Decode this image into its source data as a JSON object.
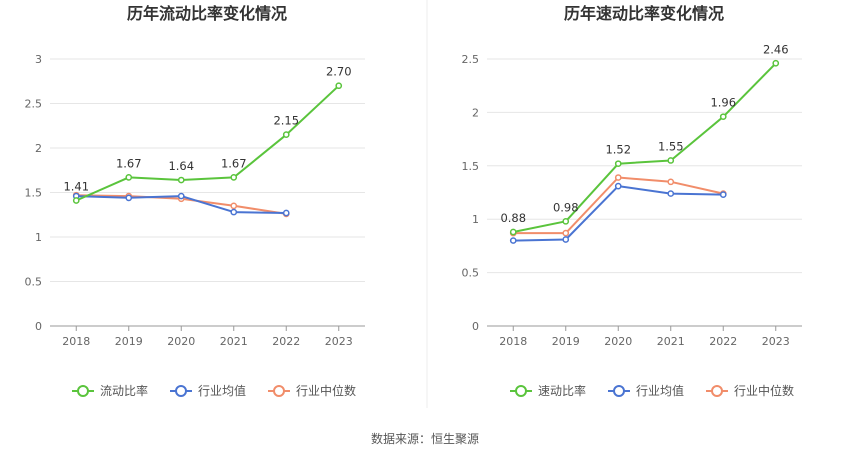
{
  "colors": {
    "green": "#5ac43c",
    "blue": "#4a74d2",
    "orange": "#f18d6a",
    "grid": "#e6e6e6",
    "axis": "#999999"
  },
  "source": "数据来源：恒生聚源",
  "chart_data": [
    {
      "type": "line",
      "title": "历年流动比率变化情况",
      "categories": [
        "2018",
        "2019",
        "2020",
        "2021",
        "2022",
        "2023"
      ],
      "ylim": [
        0,
        3
      ],
      "yticks": [
        "0",
        "0.5",
        "1",
        "1.5",
        "2",
        "2.5",
        "3"
      ],
      "grid": true,
      "legend_position": "bottom",
      "series": [
        {
          "name": "流动比率",
          "color": "#5ac43c",
          "values": [
            1.41,
            1.67,
            1.64,
            1.67,
            2.15,
            2.7
          ],
          "labels": [
            "1.41",
            "1.67",
            "1.64",
            "1.67",
            "2.15",
            "2.70"
          ]
        },
        {
          "name": "行业均值",
          "color": "#4a74d2",
          "values": [
            1.46,
            1.44,
            1.46,
            1.28,
            1.27,
            null
          ]
        },
        {
          "name": "行业中位数",
          "color": "#f18d6a",
          "values": [
            1.47,
            1.46,
            1.43,
            1.35,
            1.26,
            null
          ]
        }
      ]
    },
    {
      "type": "line",
      "title": "历年速动比率变化情况",
      "categories": [
        "2018",
        "2019",
        "2020",
        "2021",
        "2022",
        "2023"
      ],
      "ylim": [
        0,
        2.5
      ],
      "yticks": [
        "0",
        "0.5",
        "1",
        "1.5",
        "2",
        "2.5"
      ],
      "grid": true,
      "legend_position": "bottom",
      "series": [
        {
          "name": "速动比率",
          "color": "#5ac43c",
          "values": [
            0.88,
            0.98,
            1.52,
            1.55,
            1.96,
            2.46
          ],
          "labels": [
            "0.88",
            "0.98",
            "1.52",
            "1.55",
            "1.96",
            "2.46"
          ]
        },
        {
          "name": "行业均值",
          "color": "#4a74d2",
          "values": [
            0.8,
            0.81,
            1.31,
            1.24,
            1.23,
            null
          ]
        },
        {
          "name": "行业中位数",
          "color": "#f18d6a",
          "values": [
            0.87,
            0.87,
            1.39,
            1.35,
            1.24,
            null
          ]
        }
      ]
    }
  ]
}
